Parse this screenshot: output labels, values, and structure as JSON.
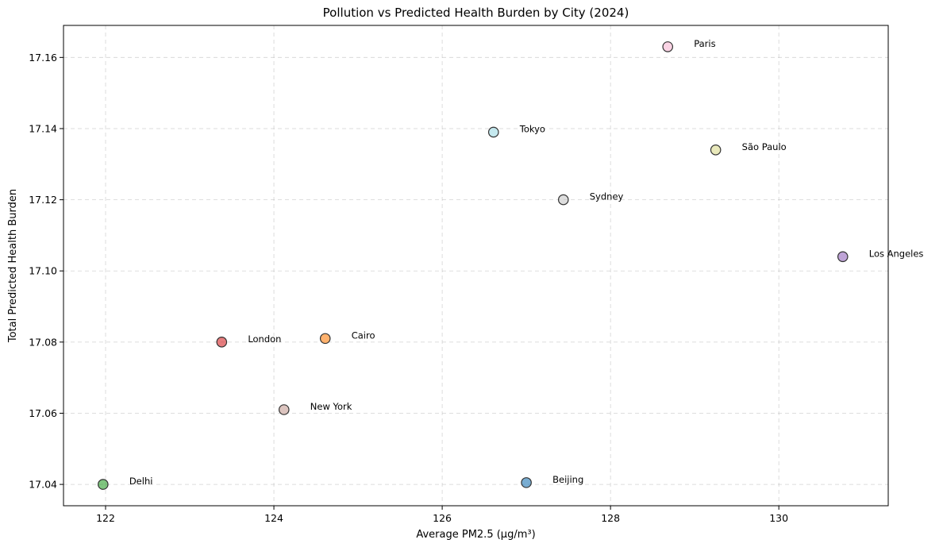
{
  "chart_data": {
    "type": "scatter",
    "title": "Pollution vs Predicted Health Burden by City (2024)",
    "xlabel": "Average PM2.5 (µg/m³)",
    "ylabel": "Total Predicted Health Burden",
    "xlim": [
      121.5,
      131.3
    ],
    "ylim": [
      17.034,
      17.169
    ],
    "x_ticks": [
      122,
      124,
      126,
      128,
      130
    ],
    "y_ticks": [
      17.04,
      17.06,
      17.08,
      17.1,
      17.12,
      17.14,
      17.16
    ],
    "x_tick_labels": [
      "122",
      "124",
      "126",
      "128",
      "130"
    ],
    "y_tick_labels": [
      "17.04",
      "17.06",
      "17.08",
      "17.10",
      "17.12",
      "17.14",
      "17.16"
    ],
    "grid": true,
    "points": [
      {
        "label": "Delhi",
        "x": 121.97,
        "y": 17.04,
        "color": "#2ca02c"
      },
      {
        "label": "London",
        "x": 123.38,
        "y": 17.08,
        "color": "#d62728"
      },
      {
        "label": "New York",
        "x": 124.12,
        "y": 17.061,
        "color": "#c49c94"
      },
      {
        "label": "Cairo",
        "x": 124.61,
        "y": 17.081,
        "color": "#ff7f0e"
      },
      {
        "label": "Tokyo",
        "x": 126.61,
        "y": 17.139,
        "color": "#9edae5"
      },
      {
        "label": "Beijing",
        "x": 127.0,
        "y": 17.0405,
        "color": "#1f77b4"
      },
      {
        "label": "Sydney",
        "x": 127.44,
        "y": 17.12,
        "color": "#c7c7c7"
      },
      {
        "label": "Paris",
        "x": 128.68,
        "y": 17.163,
        "color": "#f7b6d2"
      },
      {
        "label": "São Paulo",
        "x": 129.25,
        "y": 17.134,
        "color": "#dbdb8d"
      },
      {
        "label": "Los Angeles",
        "x": 130.76,
        "y": 17.104,
        "color": "#9467bd"
      }
    ]
  }
}
